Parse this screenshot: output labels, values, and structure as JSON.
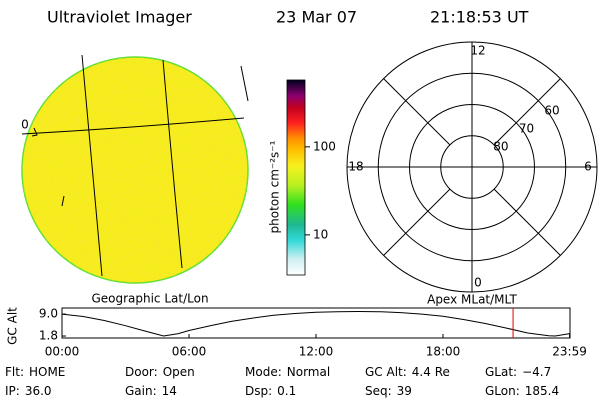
{
  "header": {
    "instrument": "Ultraviolet Imager",
    "date": "23 Mar 07",
    "time": "21:18:53 UT"
  },
  "image": {
    "label": "0",
    "caption": "Geographic Lat/Lon"
  },
  "colorbar": {
    "label": "photon cm⁻²s⁻¹",
    "log": true,
    "lim": [
      3.5,
      575
    ],
    "ticks": [
      10,
      100
    ]
  },
  "polar": {
    "caption": "Apex MLat/MLT",
    "rlim": [
      90,
      50
    ],
    "rings": [
      80,
      70,
      60
    ],
    "hour_labels": [
      12,
      18,
      6,
      0
    ]
  },
  "timeline": {
    "ylabel": "GC Alt",
    "ylim": [
      1.15,
      11.0
    ],
    "yticks": [
      {
        "value": 9.0,
        "label": "9.0"
      },
      {
        "value": 1.8,
        "label": "1.8"
      }
    ],
    "xlim": [
      0,
      24
    ],
    "xticks": [
      {
        "value": 0,
        "label": "00:00"
      },
      {
        "value": 6,
        "label": "06:00"
      },
      {
        "value": 12,
        "label": "12:00"
      },
      {
        "value": 18,
        "label": "18:00"
      },
      {
        "value": 23.98,
        "label": "23:59"
      }
    ],
    "x": [
      0,
      1,
      2,
      3,
      4,
      4.8,
      5.5,
      6,
      7,
      8,
      9,
      10,
      11,
      12,
      13,
      14,
      15,
      16,
      17,
      18,
      19,
      20,
      21,
      22,
      23,
      23.3,
      23.98
    ],
    "values": [
      9.0,
      8.2,
      6.9,
      5.2,
      3.3,
      1.8,
      2.6,
      3.6,
      5.2,
      6.6,
      7.7,
      8.6,
      9.2,
      9.6,
      9.8,
      9.85,
      9.8,
      9.5,
      9.0,
      8.3,
      7.2,
      5.9,
      4.4,
      2.8,
      1.9,
      1.8,
      2.6
    ],
    "marker": 21.31,
    "marker_color": "#e00000"
  },
  "info": [
    [
      {
        "label": "Flt:",
        "value": "HOME"
      },
      {
        "label": "IP:",
        "value": "36.0"
      }
    ],
    [
      {
        "label": "Door:",
        "value": "Open"
      },
      {
        "label": "Gain:",
        "value": "14"
      }
    ],
    [
      {
        "label": "Mode:",
        "value": "Normal"
      },
      {
        "label": "Dsp:",
        "value": "0.1"
      }
    ],
    [
      {
        "label": "GC Alt:",
        "value": "4.4 Re"
      },
      {
        "label": "Seq:",
        "value": "39"
      }
    ],
    [
      {
        "label": "GLat:",
        "value": "−4.7"
      },
      {
        "label": "GLon:",
        "value": "185.4"
      }
    ]
  ]
}
